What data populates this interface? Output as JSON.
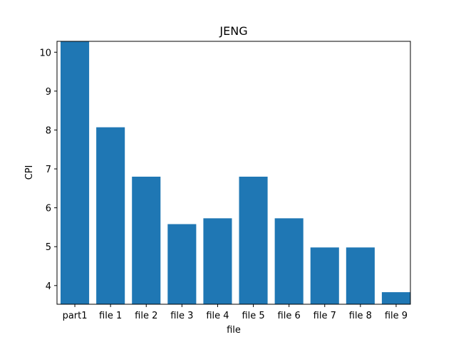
{
  "chart_data": {
    "type": "bar",
    "title": "JENG",
    "xlabel": "file",
    "ylabel": "CPI",
    "categories": [
      "part1",
      "file 1",
      "file 2",
      "file 3",
      "file 4",
      "file 5",
      "file 6",
      "file 7",
      "file 8",
      "file 9"
    ],
    "values": [
      10.28,
      8.07,
      6.8,
      5.58,
      5.73,
      6.8,
      5.73,
      4.98,
      4.98,
      3.83
    ],
    "ylim": [
      3.52,
      10.28
    ],
    "yticks": [
      4,
      5,
      6,
      7,
      8,
      9,
      10
    ],
    "grid": false,
    "bar_color": "#1f77b4"
  }
}
